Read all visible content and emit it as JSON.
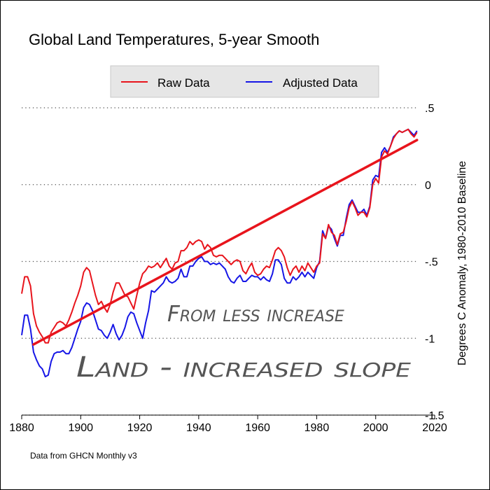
{
  "chart_data": {
    "type": "line",
    "title": "Global Land Temperatures, 5-year Smooth",
    "xlabel": "",
    "ylabel": "Degrees C Anomaly, 1980-2010 Baseline",
    "xlim": [
      1880,
      2020
    ],
    "ylim": [
      -1.5,
      0.5
    ],
    "x_ticks": [
      1880,
      1900,
      1920,
      1940,
      1960,
      1980,
      2000,
      2020
    ],
    "x_tick_labels": [
      "1880",
      "1900",
      "1920",
      "1940",
      "1960",
      "1980",
      "2000",
      "2020"
    ],
    "y_ticks": [
      0.5,
      0,
      -0.5,
      -1,
      -1.5
    ],
    "y_tick_labels": [
      ".5",
      "0",
      "-.5",
      "-1",
      "-1.5"
    ],
    "grid": "horizontal-dotted",
    "legend_position": "top-center",
    "series": [
      {
        "name": "Raw Data",
        "color": "#e8141c",
        "x": [
          1880,
          1881,
          1882,
          1883,
          1884,
          1885,
          1886,
          1887,
          1888,
          1889,
          1890,
          1891,
          1892,
          1893,
          1894,
          1895,
          1896,
          1897,
          1898,
          1899,
          1900,
          1901,
          1902,
          1903,
          1904,
          1905,
          1906,
          1907,
          1908,
          1909,
          1910,
          1911,
          1912,
          1913,
          1914,
          1915,
          1916,
          1917,
          1918,
          1919,
          1920,
          1921,
          1922,
          1923,
          1924,
          1925,
          1926,
          1927,
          1928,
          1929,
          1930,
          1931,
          1932,
          1933,
          1934,
          1935,
          1936,
          1937,
          1938,
          1939,
          1940,
          1941,
          1942,
          1943,
          1944,
          1945,
          1946,
          1947,
          1948,
          1949,
          1950,
          1951,
          1952,
          1953,
          1954,
          1955,
          1956,
          1957,
          1958,
          1959,
          1960,
          1961,
          1962,
          1963,
          1964,
          1965,
          1966,
          1967,
          1968,
          1969,
          1970,
          1971,
          1972,
          1973,
          1974,
          1975,
          1976,
          1977,
          1978,
          1979,
          1980,
          1981,
          1982,
          1983,
          1984,
          1985,
          1986,
          1987,
          1988,
          1989,
          1990,
          1991,
          1992,
          1993,
          1994,
          1995,
          1996,
          1997,
          1998,
          1999,
          2000,
          2001,
          2002,
          2003,
          2004,
          2005,
          2006,
          2007,
          2008,
          2009,
          2010,
          2011,
          2012,
          2013,
          2014
        ],
        "values": [
          -0.71,
          -0.6,
          -0.6,
          -0.66,
          -0.84,
          -0.92,
          -0.96,
          -0.99,
          -1.03,
          -1.03,
          -0.96,
          -0.93,
          -0.9,
          -0.89,
          -0.9,
          -0.92,
          -0.88,
          -0.83,
          -0.77,
          -0.72,
          -0.66,
          -0.57,
          -0.54,
          -0.56,
          -0.64,
          -0.72,
          -0.78,
          -0.76,
          -0.8,
          -0.83,
          -0.78,
          -0.7,
          -0.64,
          -0.64,
          -0.68,
          -0.72,
          -0.73,
          -0.77,
          -0.81,
          -0.72,
          -0.64,
          -0.58,
          -0.56,
          -0.53,
          -0.54,
          -0.53,
          -0.51,
          -0.54,
          -0.51,
          -0.48,
          -0.53,
          -0.55,
          -0.51,
          -0.5,
          -0.43,
          -0.43,
          -0.41,
          -0.37,
          -0.39,
          -0.37,
          -0.36,
          -0.37,
          -0.42,
          -0.39,
          -0.41,
          -0.46,
          -0.47,
          -0.46,
          -0.46,
          -0.48,
          -0.5,
          -0.52,
          -0.5,
          -0.49,
          -0.5,
          -0.56,
          -0.58,
          -0.54,
          -0.51,
          -0.57,
          -0.59,
          -0.58,
          -0.55,
          -0.53,
          -0.54,
          -0.49,
          -0.43,
          -0.41,
          -0.43,
          -0.47,
          -0.54,
          -0.59,
          -0.55,
          -0.53,
          -0.57,
          -0.53,
          -0.56,
          -0.51,
          -0.54,
          -0.57,
          -0.53,
          -0.51,
          -0.32,
          -0.35,
          -0.26,
          -0.31,
          -0.33,
          -0.39,
          -0.32,
          -0.31,
          -0.24,
          -0.15,
          -0.11,
          -0.15,
          -0.2,
          -0.18,
          -0.18,
          -0.21,
          -0.15,
          0.0,
          0.04,
          0.01,
          0.18,
          0.22,
          0.2,
          0.25,
          0.3,
          0.33,
          0.35,
          0.34,
          0.35,
          0.36,
          0.33,
          0.31,
          0.34
        ]
      },
      {
        "name": "Adjusted Data",
        "color": "#1616e6",
        "x": [
          1880,
          1881,
          1882,
          1883,
          1884,
          1885,
          1886,
          1887,
          1888,
          1889,
          1890,
          1891,
          1892,
          1893,
          1894,
          1895,
          1896,
          1897,
          1898,
          1899,
          1900,
          1901,
          1902,
          1903,
          1904,
          1905,
          1906,
          1907,
          1908,
          1909,
          1910,
          1911,
          1912,
          1913,
          1914,
          1915,
          1916,
          1917,
          1918,
          1919,
          1920,
          1921,
          1922,
          1923,
          1924,
          1925,
          1926,
          1927,
          1928,
          1929,
          1930,
          1931,
          1932,
          1933,
          1934,
          1935,
          1936,
          1937,
          1938,
          1939,
          1940,
          1941,
          1942,
          1943,
          1944,
          1945,
          1946,
          1947,
          1948,
          1949,
          1950,
          1951,
          1952,
          1953,
          1954,
          1955,
          1956,
          1957,
          1958,
          1959,
          1960,
          1961,
          1962,
          1963,
          1964,
          1965,
          1966,
          1967,
          1968,
          1969,
          1970,
          1971,
          1972,
          1973,
          1974,
          1975,
          1976,
          1977,
          1978,
          1979,
          1980,
          1981,
          1982,
          1983,
          1984,
          1985,
          1986,
          1987,
          1988,
          1989,
          1990,
          1991,
          1992,
          1993,
          1994,
          1995,
          1996,
          1997,
          1998,
          1999,
          2000,
          2001,
          2002,
          2003,
          2004,
          2005,
          2006,
          2007,
          2008,
          2009,
          2010,
          2011,
          2012,
          2013,
          2014
        ],
        "values": [
          -0.98,
          -0.85,
          -0.85,
          -0.94,
          -1.09,
          -1.14,
          -1.18,
          -1.2,
          -1.25,
          -1.24,
          -1.15,
          -1.1,
          -1.09,
          -1.09,
          -1.08,
          -1.1,
          -1.1,
          -1.06,
          -1.0,
          -0.94,
          -0.89,
          -0.8,
          -0.77,
          -0.78,
          -0.82,
          -0.88,
          -0.94,
          -0.95,
          -0.98,
          -1.0,
          -0.96,
          -0.91,
          -0.97,
          -1.01,
          -0.98,
          -0.93,
          -0.86,
          -0.83,
          -0.84,
          -0.9,
          -0.95,
          -1.0,
          -0.9,
          -0.82,
          -0.69,
          -0.7,
          -0.68,
          -0.66,
          -0.64,
          -0.6,
          -0.63,
          -0.64,
          -0.63,
          -0.61,
          -0.55,
          -0.6,
          -0.6,
          -0.53,
          -0.53,
          -0.5,
          -0.48,
          -0.47,
          -0.5,
          -0.5,
          -0.52,
          -0.51,
          -0.52,
          -0.51,
          -0.53,
          -0.55,
          -0.6,
          -0.63,
          -0.64,
          -0.61,
          -0.59,
          -0.63,
          -0.63,
          -0.61,
          -0.59,
          -0.6,
          -0.6,
          -0.62,
          -0.6,
          -0.62,
          -0.63,
          -0.58,
          -0.49,
          -0.49,
          -0.52,
          -0.61,
          -0.64,
          -0.64,
          -0.6,
          -0.62,
          -0.6,
          -0.57,
          -0.6,
          -0.57,
          -0.59,
          -0.61,
          -0.54,
          -0.5,
          -0.3,
          -0.35,
          -0.27,
          -0.29,
          -0.35,
          -0.4,
          -0.33,
          -0.33,
          -0.22,
          -0.13,
          -0.1,
          -0.14,
          -0.18,
          -0.18,
          -0.16,
          -0.2,
          -0.14,
          0.03,
          0.06,
          0.05,
          0.21,
          0.24,
          0.21,
          0.25,
          0.31,
          0.33,
          0.35,
          0.34,
          0.35,
          0.36,
          0.34,
          0.32,
          0.35
        ]
      }
    ],
    "trend_line": {
      "color": "#e8141c",
      "x": [
        1884,
        2014
      ],
      "y": [
        -1.04,
        0.29
      ]
    },
    "annotations": [
      {
        "text": "From less increase"
      },
      {
        "text": "Land - increased slope"
      }
    ],
    "note": "Data from GHCN Monthly v3"
  }
}
